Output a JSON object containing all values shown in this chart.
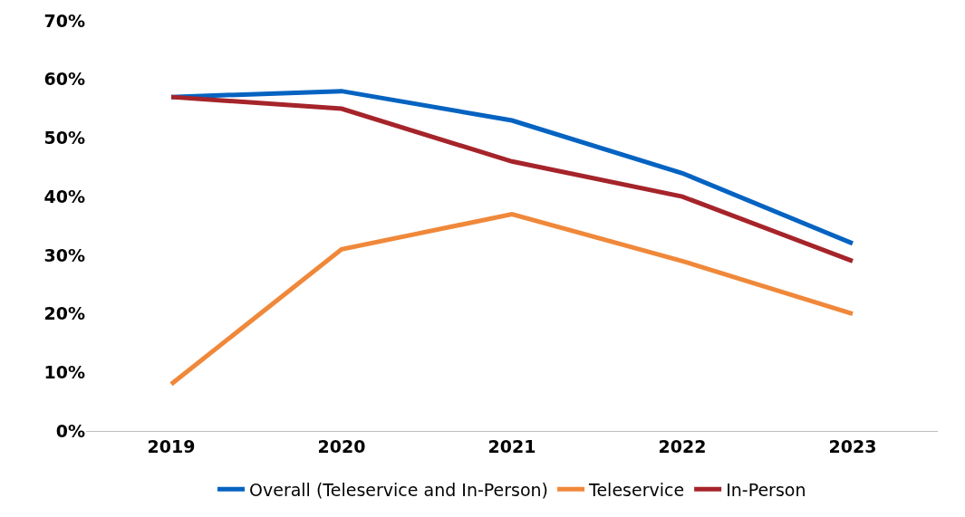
{
  "chart_data": {
    "type": "line",
    "categories": [
      "2019",
      "2020",
      "2021",
      "2022",
      "2023"
    ],
    "series": [
      {
        "name": "Overall (Teleservice and In-Person)",
        "color": "#0563c1",
        "values": [
          57,
          58,
          53,
          44,
          32
        ]
      },
      {
        "name": "Teleservice",
        "color": "#f0883a",
        "values": [
          8,
          31,
          37,
          29,
          20
        ]
      },
      {
        "name": "In-Person",
        "color": "#a5242a",
        "values": [
          57,
          55,
          46,
          40,
          29
        ]
      }
    ],
    "ylim": [
      0,
      70
    ],
    "yticks": [
      {
        "value": 0,
        "label": "0%"
      },
      {
        "value": 10,
        "label": "10%"
      },
      {
        "value": 20,
        "label": "20%"
      },
      {
        "value": 30,
        "label": "30%"
      },
      {
        "value": 40,
        "label": "40%"
      },
      {
        "value": 50,
        "label": "50%"
      },
      {
        "value": 60,
        "label": "60%"
      },
      {
        "value": 70,
        "label": "70%"
      }
    ],
    "grid": false,
    "legend": "bottom",
    "marker": "none",
    "line_style": "solid"
  }
}
